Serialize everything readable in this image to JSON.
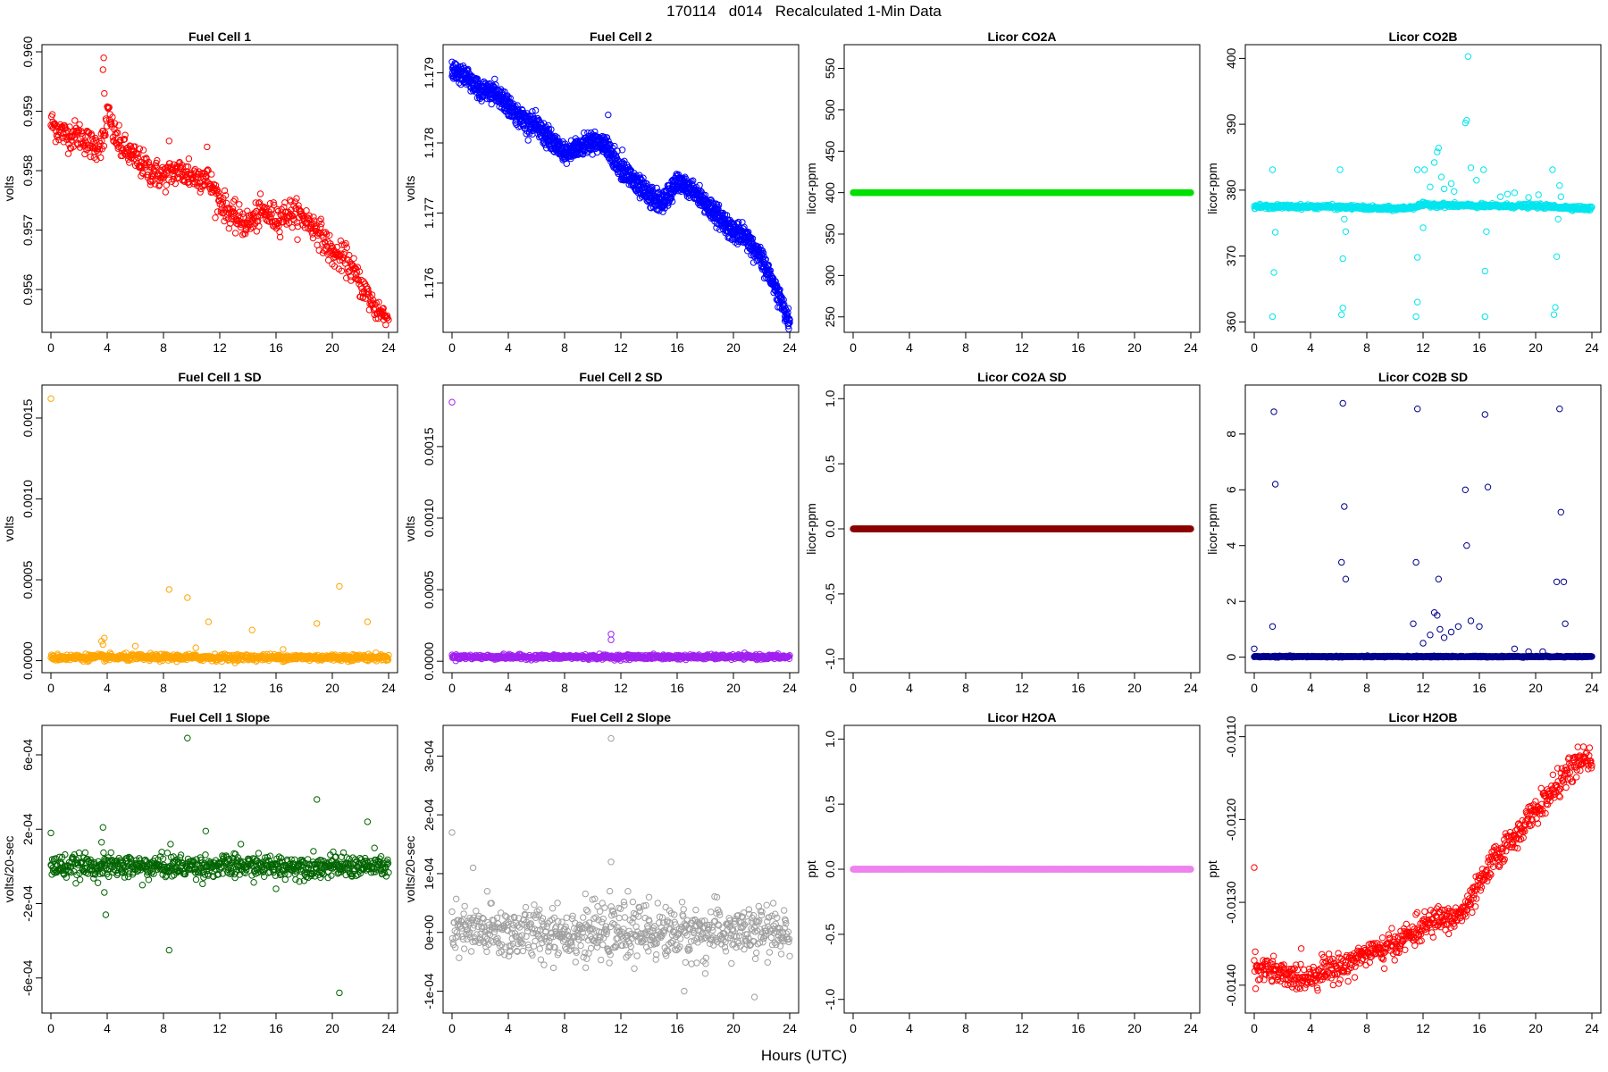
{
  "figure": {
    "title": "170114   d014   Recalculated 1-Min Data",
    "xlabel": "Hours (UTC)"
  },
  "chart_data": [
    {
      "type": "scatter",
      "title": "Fuel Cell 1",
      "ylabel": "volts",
      "xlim": [
        0,
        24
      ],
      "ylim": [
        0.9554,
        0.96
      ],
      "xticks": [
        0,
        4,
        8,
        12,
        16,
        20,
        24
      ],
      "yticks": [
        0.956,
        0.957,
        0.958,
        0.959,
        0.96
      ],
      "ytick_labels": [
        "0.956",
        "0.957",
        "0.958",
        "0.959",
        "0.960"
      ],
      "color": "#ff0000",
      "series_shape": "noisy",
      "trend": [
        [
          0,
          0.9588
        ],
        [
          1,
          0.9586
        ],
        [
          2,
          0.9586
        ],
        [
          3,
          0.9584
        ],
        [
          3.8,
          0.9585
        ],
        [
          4,
          0.959
        ],
        [
          4.5,
          0.9586
        ],
        [
          5,
          0.9584
        ],
        [
          6,
          0.9582
        ],
        [
          7,
          0.958
        ],
        [
          8,
          0.9579
        ],
        [
          9,
          0.958
        ],
        [
          10,
          0.9579
        ],
        [
          11,
          0.9579
        ],
        [
          12,
          0.9575
        ],
        [
          13,
          0.9572
        ],
        [
          14,
          0.9571
        ],
        [
          15,
          0.9573
        ],
        [
          16,
          0.9572
        ],
        [
          17,
          0.9573
        ],
        [
          18,
          0.9572
        ],
        [
          19,
          0.957
        ],
        [
          20,
          0.9566
        ],
        [
          21,
          0.9565
        ],
        [
          22,
          0.9561
        ],
        [
          23,
          0.9557
        ],
        [
          24,
          0.9555
        ]
      ],
      "noise": 0.00012,
      "points": [
        [
          3.7,
          0.9597
        ],
        [
          3.75,
          0.9599
        ],
        [
          3.8,
          0.9593
        ],
        [
          8.4,
          0.9585
        ],
        [
          11.1,
          0.9584
        ],
        [
          9.8,
          0.9582
        ]
      ]
    },
    {
      "type": "scatter",
      "title": "Fuel Cell 2",
      "ylabel": "volts",
      "xlim": [
        0,
        24
      ],
      "ylim": [
        1.1754,
        1.1793
      ],
      "xticks": [
        0,
        4,
        8,
        12,
        16,
        20,
        24
      ],
      "yticks": [
        1.176,
        1.177,
        1.178,
        1.179
      ],
      "ytick_labels": [
        "1.176",
        "1.177",
        "1.178",
        "1.179"
      ],
      "color": "#0000ff",
      "series_shape": "double-band",
      "band_offset": 0.00012,
      "trend": [
        [
          0,
          1.1791
        ],
        [
          1,
          1.179
        ],
        [
          2,
          1.1788
        ],
        [
          3,
          1.1788
        ],
        [
          4,
          1.1786
        ],
        [
          5,
          1.1784
        ],
        [
          6,
          1.1783
        ],
        [
          7,
          1.1781
        ],
        [
          8,
          1.1779
        ],
        [
          9,
          1.178
        ],
        [
          10,
          1.1781
        ],
        [
          11,
          1.178
        ],
        [
          12,
          1.1777
        ],
        [
          13,
          1.1775
        ],
        [
          14,
          1.1773
        ],
        [
          15,
          1.1772
        ],
        [
          16,
          1.1775
        ],
        [
          17,
          1.1774
        ],
        [
          18,
          1.1772
        ],
        [
          19,
          1.177
        ],
        [
          20,
          1.1768
        ],
        [
          21,
          1.1767
        ],
        [
          22,
          1.1764
        ],
        [
          23,
          1.176
        ],
        [
          24,
          1.1755
        ]
      ],
      "noise": 5e-05,
      "points": [
        [
          11.1,
          1.1784
        ],
        [
          12.1,
          1.1779
        ]
      ]
    },
    {
      "type": "scatter",
      "title": "Licor CO2A",
      "ylabel": "licor-ppm",
      "xlim": [
        0,
        24
      ],
      "ylim": [
        240,
        570
      ],
      "xticks": [
        0,
        4,
        8,
        12,
        16,
        20,
        24
      ],
      "yticks": [
        250,
        300,
        350,
        400,
        450,
        500,
        550
      ],
      "ytick_labels": [
        "250",
        "300",
        "350",
        "400",
        "450",
        "500",
        "550"
      ],
      "color": "#00e000",
      "series_shape": "flat",
      "constant": 400
    },
    {
      "type": "scatter",
      "title": "Licor CO2B",
      "ylabel": "licor-ppm",
      "xlim": [
        0,
        24
      ],
      "ylim": [
        359.5,
        401
      ],
      "xticks": [
        0,
        4,
        8,
        12,
        16,
        20,
        24
      ],
      "yticks": [
        360,
        370,
        380,
        390,
        400
      ],
      "ytick_labels": [
        "360",
        "370",
        "380",
        "390",
        "400"
      ],
      "color": "#00e5ee",
      "series_shape": "noisy",
      "trend": [
        [
          0,
          377.5
        ],
        [
          5,
          377.5
        ],
        [
          6.2,
          377.4
        ],
        [
          7,
          377.4
        ],
        [
          9,
          377.2
        ],
        [
          10,
          377.2
        ],
        [
          11,
          377.3
        ],
        [
          12,
          377.8
        ],
        [
          16,
          377.6
        ],
        [
          20,
          377.6
        ],
        [
          24,
          377.2
        ]
      ],
      "noise": 0.15,
      "points": [
        [
          1.3,
          383.1
        ],
        [
          1.3,
          360.8
        ],
        [
          1.4,
          367.5
        ],
        [
          1.5,
          373.6
        ],
        [
          6.1,
          383.1
        ],
        [
          6.2,
          361.1
        ],
        [
          6.3,
          362.1
        ],
        [
          6.3,
          369.6
        ],
        [
          6.4,
          375.6
        ],
        [
          6.5,
          373.7
        ],
        [
          11.6,
          383.1
        ],
        [
          11.5,
          360.8
        ],
        [
          11.6,
          369.8
        ],
        [
          11.6,
          363.0
        ],
        [
          12.0,
          374.3
        ],
        [
          12.1,
          383.1
        ],
        [
          12.5,
          380.5
        ],
        [
          12.8,
          384.2
        ],
        [
          13.0,
          385.8
        ],
        [
          13.1,
          386.4
        ],
        [
          13.3,
          382.0
        ],
        [
          13.5,
          380.2
        ],
        [
          14.0,
          381.0
        ],
        [
          14.2,
          379.8
        ],
        [
          15.0,
          390.2
        ],
        [
          15.1,
          390.6
        ],
        [
          15.2,
          400.3
        ],
        [
          15.4,
          383.4
        ],
        [
          15.8,
          381.5
        ],
        [
          16.3,
          383.1
        ],
        [
          16.4,
          360.8
        ],
        [
          16.4,
          367.7
        ],
        [
          16.5,
          373.7
        ],
        [
          17.5,
          379.0
        ],
        [
          18.0,
          379.4
        ],
        [
          18.5,
          379.6
        ],
        [
          19.5,
          378.9
        ],
        [
          20.2,
          379.3
        ],
        [
          21.2,
          383.1
        ],
        [
          21.3,
          361.1
        ],
        [
          21.4,
          362.2
        ],
        [
          21.5,
          369.9
        ],
        [
          21.6,
          375.6
        ],
        [
          21.7,
          380.7
        ],
        [
          21.8,
          379.0
        ]
      ]
    },
    {
      "type": "scatter",
      "title": "Fuel Cell 1 SD",
      "ylabel": "volts",
      "xlim": [
        0,
        24
      ],
      "ylim": [
        -3e-05,
        0.00166
      ],
      "xticks": [
        0,
        4,
        8,
        12,
        16,
        20,
        24
      ],
      "yticks": [
        0,
        0.0005,
        0.001,
        0.0015
      ],
      "ytick_labels": [
        "0.0000",
        "0.0005",
        "0.0010",
        "0.0015"
      ],
      "color": "#ffa500",
      "series_shape": "baseline",
      "base": 2e-05,
      "noise": 1e-05,
      "points": [
        [
          0,
          0.00162
        ],
        [
          3.6,
          0.00012
        ],
        [
          3.7,
          0.0001
        ],
        [
          3.8,
          0.00014
        ],
        [
          8.4,
          0.00044
        ],
        [
          9.7,
          0.00039
        ],
        [
          11.2,
          0.00024
        ],
        [
          14.3,
          0.00019
        ],
        [
          18.9,
          0.00023
        ],
        [
          20.5,
          0.00046
        ],
        [
          22.5,
          0.00024
        ],
        [
          6.0,
          9e-05
        ],
        [
          10.3,
          8e-05
        ],
        [
          16.5,
          7e-05
        ]
      ]
    },
    {
      "type": "scatter",
      "title": "Fuel Cell 2 SD",
      "ylabel": "volts",
      "xlim": [
        0,
        24
      ],
      "ylim": [
        -3e-05,
        0.00188
      ],
      "xticks": [
        0,
        4,
        8,
        12,
        16,
        20,
        24
      ],
      "yticks": [
        0,
        0.0005,
        0.001,
        0.0015
      ],
      "ytick_labels": [
        "0.0000",
        "0.0005",
        "0.0010",
        "0.0015"
      ],
      "color": "#a020f0",
      "series_shape": "baseline",
      "base": 3e-05,
      "noise": 8e-06,
      "points": [
        [
          0,
          0.00181
        ],
        [
          11.3,
          0.00019
        ],
        [
          11.3,
          0.00015
        ]
      ]
    },
    {
      "type": "scatter",
      "title": "Licor CO2A SD",
      "ylabel": "licor-ppm",
      "xlim": [
        0,
        24
      ],
      "ylim": [
        -1.05,
        1.05
      ],
      "xticks": [
        0,
        4,
        8,
        12,
        16,
        20,
        24
      ],
      "yticks": [
        -1.0,
        -0.5,
        0,
        0.5,
        1.0
      ],
      "ytick_labels": [
        "-1.0",
        "-0.5",
        "0.0",
        "0.5",
        "1.0"
      ],
      "color": "#8b0000",
      "series_shape": "flat",
      "constant": 0
    },
    {
      "type": "scatter",
      "title": "Licor CO2B SD",
      "ylabel": "licor-ppm",
      "xlim": [
        0,
        24
      ],
      "ylim": [
        -0.3,
        9.5
      ],
      "xticks": [
        0,
        4,
        8,
        12,
        16,
        20,
        24
      ],
      "yticks": [
        0,
        2,
        4,
        6,
        8
      ],
      "ytick_labels": [
        "0",
        "2",
        "4",
        "6",
        "8"
      ],
      "color": "#00008b",
      "series_shape": "baseline",
      "base": 0.02,
      "noise": 0.01,
      "points": [
        [
          0,
          0.3
        ],
        [
          1.3,
          1.1
        ],
        [
          1.4,
          8.8
        ],
        [
          1.5,
          6.2
        ],
        [
          6.2,
          3.4
        ],
        [
          6.3,
          9.1
        ],
        [
          6.4,
          5.4
        ],
        [
          6.5,
          2.8
        ],
        [
          11.5,
          3.4
        ],
        [
          11.6,
          8.9
        ],
        [
          11.3,
          1.2
        ],
        [
          12.0,
          0.5
        ],
        [
          12.5,
          0.8
        ],
        [
          12.8,
          1.6
        ],
        [
          13.0,
          1.5
        ],
        [
          13.1,
          2.8
        ],
        [
          13.2,
          1.0
        ],
        [
          13.5,
          0.7
        ],
        [
          14.0,
          0.9
        ],
        [
          14.5,
          1.1
        ],
        [
          15.0,
          6.0
        ],
        [
          15.1,
          4.0
        ],
        [
          15.4,
          1.3
        ],
        [
          16.0,
          1.1
        ],
        [
          16.4,
          8.7
        ],
        [
          16.6,
          6.1
        ],
        [
          18.5,
          0.3
        ],
        [
          19.5,
          0.2
        ],
        [
          20.5,
          0.2
        ],
        [
          21.5,
          2.7
        ],
        [
          21.7,
          8.9
        ],
        [
          21.8,
          5.2
        ],
        [
          22.0,
          2.7
        ],
        [
          22.1,
          1.2
        ]
      ]
    },
    {
      "type": "scatter",
      "title": "Fuel Cell 1 Slope",
      "ylabel": "volts/20-sec",
      "xlim": [
        0,
        24
      ],
      "ylim": [
        -0.00075,
        0.00072
      ],
      "xticks": [
        0,
        4,
        8,
        12,
        16,
        20,
        24
      ],
      "yticks": [
        -0.0006,
        -0.0002,
        0.0002,
        0.0006
      ],
      "ytick_labels": [
        "-6e-04",
        "-2e-04",
        "2e-04",
        "6e-04"
      ],
      "color": "#006400",
      "series_shape": "baseline",
      "base": 0.0,
      "noise": 3e-05,
      "points": [
        [
          0,
          0.00018
        ],
        [
          3.6,
          0.00013
        ],
        [
          3.7,
          0.00021
        ],
        [
          3.8,
          -0.00014
        ],
        [
          3.9,
          -0.00026
        ],
        [
          8.4,
          -0.00045
        ],
        [
          8.5,
          0.00012
        ],
        [
          9.7,
          0.00069
        ],
        [
          11.0,
          0.00019
        ],
        [
          13.5,
          0.00012
        ],
        [
          18.9,
          0.00036
        ],
        [
          20.5,
          -0.00068
        ],
        [
          22.5,
          0.00024
        ],
        [
          6.5,
          -0.0001
        ],
        [
          16.0,
          -0.00012
        ]
      ]
    },
    {
      "type": "scatter",
      "title": "Fuel Cell 2 Slope",
      "ylabel": "volts/20-sec",
      "xlim": [
        0,
        24
      ],
      "ylim": [
        -0.000125,
        0.00034
      ],
      "xticks": [
        0,
        4,
        8,
        12,
        16,
        20,
        24
      ],
      "yticks": [
        -0.0001,
        0,
        0.0001,
        0.0002,
        0.0003
      ],
      "ytick_labels": [
        "-1e-04",
        "0e+00",
        "1e-04",
        "2e-04",
        "3e-04"
      ],
      "color": "#a0a0a0",
      "series_shape": "baseline",
      "base": 0.0,
      "noise": 2.2e-05,
      "points": [
        [
          0,
          0.00017
        ],
        [
          1.5,
          0.00011
        ],
        [
          2.5,
          7e-05
        ],
        [
          11.3,
          0.00033
        ],
        [
          11.3,
          0.00012
        ],
        [
          12.5,
          7e-05
        ],
        [
          16.5,
          -0.0001
        ],
        [
          21.5,
          -0.00011
        ],
        [
          14.0,
          6e-05
        ],
        [
          18.0,
          -7e-05
        ],
        [
          7.5,
          5e-05
        ],
        [
          9.5,
          -6e-05
        ]
      ]
    },
    {
      "type": "scatter",
      "title": "Licor H2OA",
      "ylabel": "ppt",
      "xlim": [
        0,
        24
      ],
      "ylim": [
        -1.05,
        1.05
      ],
      "xticks": [
        0,
        4,
        8,
        12,
        16,
        20,
        24
      ],
      "yticks": [
        -1.0,
        -0.5,
        0,
        0.5,
        1.0
      ],
      "ytick_labels": [
        "-1.0",
        "-0.5",
        "0.0",
        "0.5",
        "1.0"
      ],
      "color": "#ee82ee",
      "series_shape": "flat",
      "constant": 0
    },
    {
      "type": "scatter",
      "title": "Licor H2OB",
      "ylabel": "ppt",
      "xlim": [
        0,
        24
      ],
      "ylim": [
        -0.01425,
        -0.01095
      ],
      "xticks": [
        0,
        4,
        8,
        12,
        16,
        20,
        24
      ],
      "yticks": [
        -0.014,
        -0.013,
        -0.012,
        -0.011
      ],
      "ytick_labels": [
        "-0.0140",
        "-0.0130",
        "-0.0120",
        "-0.0110"
      ],
      "color": "#ff0000",
      "series_shape": "noisy",
      "trend": [
        [
          0,
          -0.0138
        ],
        [
          1,
          -0.0138
        ],
        [
          2,
          -0.0139
        ],
        [
          3,
          -0.0139
        ],
        [
          4,
          -0.0139
        ],
        [
          5,
          -0.0138
        ],
        [
          6,
          -0.0138
        ],
        [
          7,
          -0.0137
        ],
        [
          8,
          -0.0136
        ],
        [
          9,
          -0.0136
        ],
        [
          10,
          -0.0135
        ],
        [
          11,
          -0.0134
        ],
        [
          12,
          -0.0133
        ],
        [
          13,
          -0.0132
        ],
        [
          14,
          -0.0132
        ],
        [
          15,
          -0.0131
        ],
        [
          16,
          -0.0128
        ],
        [
          17,
          -0.0125
        ],
        [
          18,
          -0.0123
        ],
        [
          19,
          -0.0121
        ],
        [
          20,
          -0.0119
        ],
        [
          21,
          -0.0117
        ],
        [
          22,
          -0.0115
        ],
        [
          23,
          -0.0113
        ],
        [
          24,
          -0.0113
        ]
      ],
      "noise": 8e-05,
      "points": [
        [
          0,
          -0.01258
        ]
      ]
    }
  ]
}
